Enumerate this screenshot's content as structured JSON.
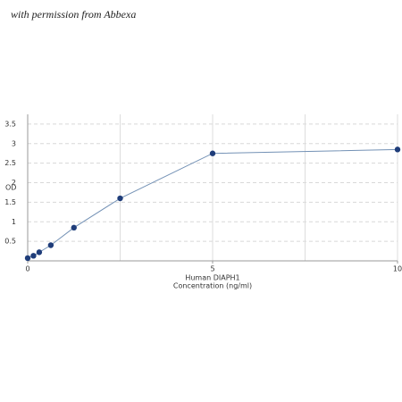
{
  "watermark": "with permission from Abbexa",
  "chart_data": {
    "type": "line",
    "x_label_lines": [
      "Human DIAPH1",
      "Concentration (ng/ml)"
    ],
    "y_label": "OD",
    "x": [
      0,
      0.156,
      0.312,
      0.625,
      1.25,
      2.5,
      5,
      10
    ],
    "series": [
      {
        "color": "#1f3d7a",
        "line_color": "#7391b5",
        "values": [
          0.07,
          0.13,
          0.22,
          0.4,
          0.85,
          1.6,
          2.75,
          2.85
        ]
      }
    ],
    "xlim": [
      0,
      10
    ],
    "xticks": [
      0,
      5,
      10
    ],
    "xgrid": [
      2.5,
      5,
      7.5,
      10
    ],
    "ylim": [
      0,
      3.75
    ],
    "yticks": [
      0.5,
      1,
      1.5,
      2,
      2.5,
      3,
      3.5
    ],
    "grid": true
  }
}
